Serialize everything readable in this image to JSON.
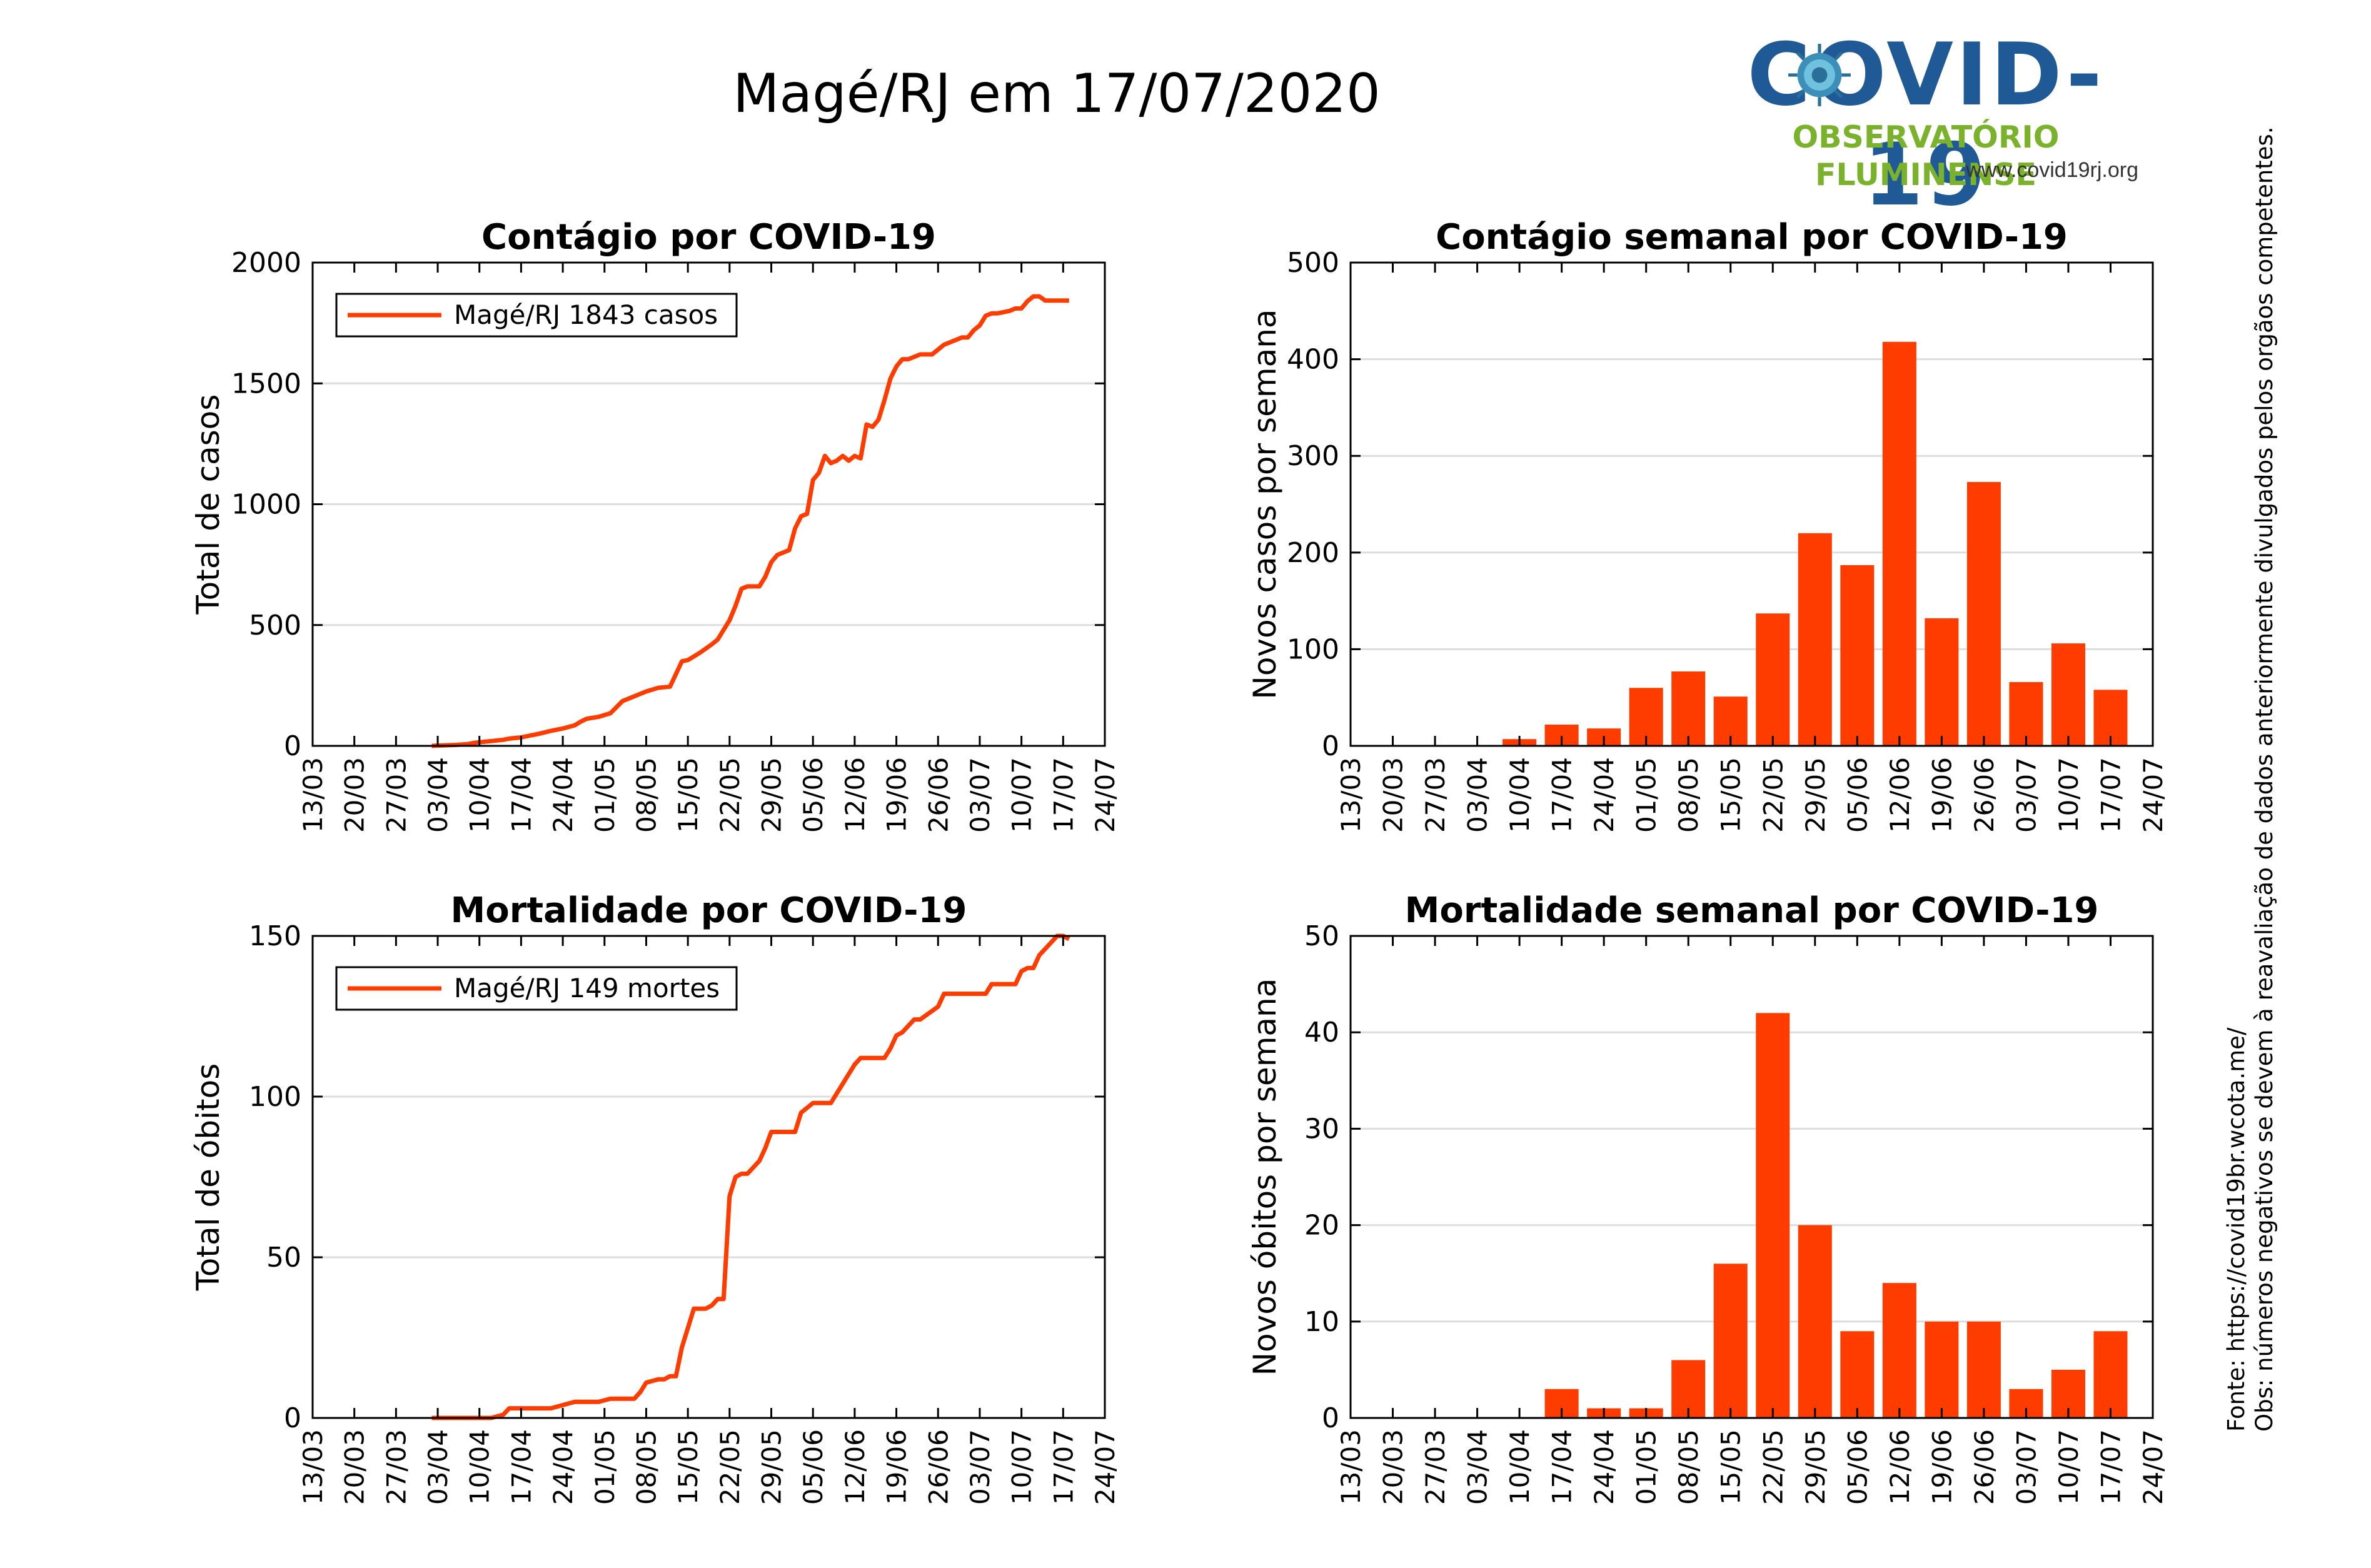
{
  "title": "Magé/RJ em 17/07/2020",
  "logo": {
    "main": "COVID-19",
    "sub": "OBSERVATÓRIO FLUMINENSE",
    "url": "www.covid19rj.org"
  },
  "notes": {
    "source": "Fonte: https://covid19br.wcota.me/",
    "obs": "Obs: números negativos se devem à reavaliação de dados anteriormente divulgados pelos orgãos competentes."
  },
  "colors": {
    "series": "#ff3c00",
    "grid": "#dddddd"
  },
  "chart_data": [
    {
      "type": "line",
      "title": "Contágio por COVID-19",
      "ylabel": "Total de casos",
      "xlabel": "",
      "ylim": [
        0,
        2000
      ],
      "yticks": [
        0,
        500,
        1000,
        1500,
        2000
      ],
      "xlim": [
        0,
        133
      ],
      "xticks": [
        0,
        7,
        14,
        21,
        28,
        35,
        42,
        49,
        56,
        63,
        70,
        77,
        84,
        91,
        98,
        105,
        112,
        119,
        126,
        133
      ],
      "xticklabels": [
        "13/03",
        "20/03",
        "27/03",
        "03/04",
        "10/04",
        "17/04",
        "24/04",
        "01/05",
        "08/05",
        "15/05",
        "22/05",
        "29/05",
        "05/06",
        "12/06",
        "19/06",
        "26/06",
        "03/07",
        "10/07",
        "17/07",
        "24/07"
      ],
      "legend": "Magé/RJ  1843 casos",
      "legend_position": "top-left",
      "grid": true,
      "series": [
        {
          "x": [
            20,
            22,
            24,
            26,
            27,
            28,
            30,
            32,
            33,
            35,
            36,
            38,
            40,
            42,
            44,
            45,
            46,
            48,
            50,
            52,
            53,
            55,
            56,
            58,
            60,
            62,
            63,
            64,
            65,
            67,
            68,
            70,
            71,
            72,
            73,
            75,
            76,
            77,
            78,
            80,
            81,
            82,
            83,
            84,
            85,
            86,
            87,
            88,
            89,
            90,
            91,
            92,
            93,
            94,
            95,
            96,
            97,
            98,
            99,
            100,
            101,
            102,
            103,
            104,
            105,
            106,
            108,
            109,
            110,
            111,
            112,
            113,
            114,
            115,
            117,
            118,
            119,
            120,
            121,
            122,
            123,
            124,
            125,
            126,
            127
          ],
          "y": [
            0,
            2,
            4,
            7,
            12,
            15,
            20,
            25,
            30,
            35,
            40,
            50,
            62,
            72,
            85,
            100,
            112,
            120,
            135,
            185,
            195,
            215,
            225,
            240,
            245,
            350,
            355,
            370,
            385,
            420,
            440,
            520,
            580,
            650,
            660,
            660,
            700,
            760,
            790,
            810,
            900,
            950,
            960,
            1100,
            1130,
            1200,
            1170,
            1180,
            1200,
            1180,
            1200,
            1190,
            1330,
            1320,
            1350,
            1430,
            1520,
            1570,
            1600,
            1600,
            1610,
            1620,
            1620,
            1620,
            1640,
            1660,
            1680,
            1690,
            1690,
            1720,
            1740,
            1780,
            1790,
            1790,
            1800,
            1810,
            1810,
            1840,
            1860,
            1860,
            1843,
            1843,
            1843,
            1843,
            1843
          ]
        }
      ]
    },
    {
      "type": "bar",
      "title": "Contágio semanal por COVID-19",
      "ylabel": "Novos casos por semana",
      "xlabel": "",
      "ylim": [
        0,
        500
      ],
      "yticks": [
        0,
        100,
        200,
        300,
        400,
        500
      ],
      "xlim": [
        0,
        133
      ],
      "xticks": [
        0,
        7,
        14,
        21,
        28,
        35,
        42,
        49,
        56,
        63,
        70,
        77,
        84,
        91,
        98,
        105,
        112,
        119,
        126,
        133
      ],
      "xticklabels": [
        "13/03",
        "20/03",
        "27/03",
        "03/04",
        "10/04",
        "17/04",
        "24/04",
        "01/05",
        "08/05",
        "15/05",
        "22/05",
        "29/05",
        "05/06",
        "12/06",
        "19/06",
        "26/06",
        "03/07",
        "10/07",
        "17/07",
        "24/07"
      ],
      "grid": true,
      "series": [
        {
          "x": [
            28,
            35,
            42,
            49,
            56,
            63,
            70,
            77,
            84,
            91,
            98,
            105,
            112,
            119,
            126
          ],
          "values": [
            7,
            22,
            18,
            60,
            77,
            51,
            137,
            220,
            187,
            418,
            132,
            273,
            66,
            106,
            58
          ]
        }
      ]
    },
    {
      "type": "line",
      "title": "Mortalidade por COVID-19",
      "ylabel": "Total de óbitos",
      "xlabel": "",
      "ylim": [
        0,
        150
      ],
      "yticks": [
        0,
        50,
        100,
        150
      ],
      "xlim": [
        0,
        133
      ],
      "xticks": [
        0,
        7,
        14,
        21,
        28,
        35,
        42,
        49,
        56,
        63,
        70,
        77,
        84,
        91,
        98,
        105,
        112,
        119,
        126,
        133
      ],
      "xticklabels": [
        "13/03",
        "20/03",
        "27/03",
        "03/04",
        "10/04",
        "17/04",
        "24/04",
        "01/05",
        "08/05",
        "15/05",
        "22/05",
        "29/05",
        "05/06",
        "12/06",
        "19/06",
        "26/06",
        "03/07",
        "10/07",
        "17/07",
        "24/07"
      ],
      "legend": "Magé/RJ  149 mortes",
      "legend_position": "top-left",
      "grid": true,
      "series": [
        {
          "x": [
            20,
            25,
            30,
            32,
            33,
            35,
            36,
            38,
            40,
            42,
            44,
            48,
            50,
            54,
            55,
            56,
            58,
            59,
            60,
            61,
            62,
            63,
            64,
            66,
            67,
            68,
            69,
            70,
            71,
            72,
            73,
            74,
            75,
            76,
            77,
            78,
            80,
            81,
            82,
            84,
            85,
            86,
            87,
            90,
            91,
            92,
            93,
            94,
            95,
            96,
            97,
            98,
            99,
            100,
            101,
            102,
            105,
            106,
            108,
            109,
            110,
            111,
            112,
            113,
            114,
            115,
            117,
            118,
            119,
            120,
            121,
            122,
            123,
            124,
            125,
            126,
            127
          ],
          "y": [
            0,
            0,
            0,
            1,
            3,
            3,
            3,
            3,
            3,
            4,
            5,
            5,
            6,
            6,
            8,
            11,
            12,
            12,
            13,
            13,
            22,
            28,
            34,
            34,
            35,
            37,
            37,
            69,
            75,
            76,
            76,
            78,
            80,
            84,
            89,
            89,
            89,
            89,
            95,
            98,
            98,
            98,
            98,
            107,
            110,
            112,
            112,
            112,
            112,
            112,
            115,
            119,
            120,
            122,
            124,
            124,
            128,
            132,
            132,
            132,
            132,
            132,
            132,
            132,
            135,
            135,
            135,
            135,
            139,
            140,
            140,
            144,
            146,
            148,
            150,
            150,
            149
          ]
        }
      ]
    },
    {
      "type": "bar",
      "title": "Mortalidade semanal por COVID-19",
      "ylabel": "Novos óbitos por semana",
      "xlabel": "",
      "ylim": [
        0,
        50
      ],
      "yticks": [
        0,
        10,
        20,
        30,
        40,
        50
      ],
      "xlim": [
        0,
        133
      ],
      "xticks": [
        0,
        7,
        14,
        21,
        28,
        35,
        42,
        49,
        56,
        63,
        70,
        77,
        84,
        91,
        98,
        105,
        112,
        119,
        126,
        133
      ],
      "xticklabels": [
        "13/03",
        "20/03",
        "27/03",
        "03/04",
        "10/04",
        "17/04",
        "24/04",
        "01/05",
        "08/05",
        "15/05",
        "22/05",
        "29/05",
        "05/06",
        "12/06",
        "19/06",
        "26/06",
        "03/07",
        "10/07",
        "17/07",
        "24/07"
      ],
      "grid": true,
      "series": [
        {
          "x": [
            35,
            42,
            49,
            56,
            63,
            70,
            77,
            84,
            91,
            98,
            105,
            112,
            119,
            126
          ],
          "values": [
            3,
            1,
            1,
            6,
            16,
            42,
            20,
            9,
            14,
            10,
            10,
            3,
            5,
            9
          ]
        }
      ]
    }
  ]
}
